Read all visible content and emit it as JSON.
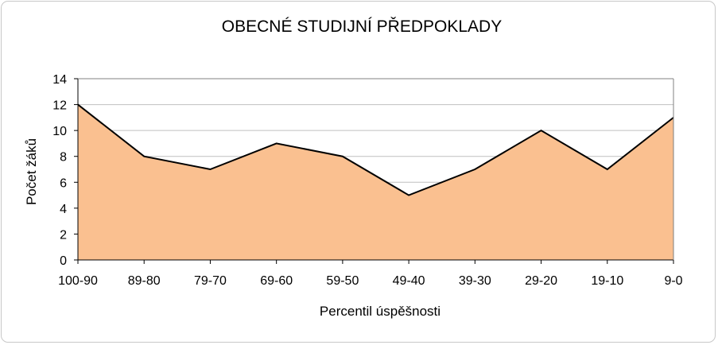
{
  "chart_data": {
    "type": "area",
    "title": "OBECNÉ STUDIJNÍ PŘEDPOKLADY",
    "xlabel": "Percentil úspěšnosti",
    "ylabel": "Počet žáků",
    "categories": [
      "100-90",
      "89-80",
      "79-70",
      "69-60",
      "59-50",
      "49-40",
      "39-30",
      "29-20",
      "19-10",
      "9-0"
    ],
    "values": [
      12,
      8,
      7,
      9,
      8,
      5,
      7,
      10,
      7,
      11
    ],
    "ylim": [
      0,
      14
    ],
    "yticks": [
      "0",
      "2",
      "4",
      "6",
      "8",
      "10",
      "12",
      "14"
    ],
    "grid": true,
    "legend": "none",
    "colors": {
      "fill": "#FAC090",
      "line": "#000000",
      "grid": "#c0c0c0"
    }
  }
}
